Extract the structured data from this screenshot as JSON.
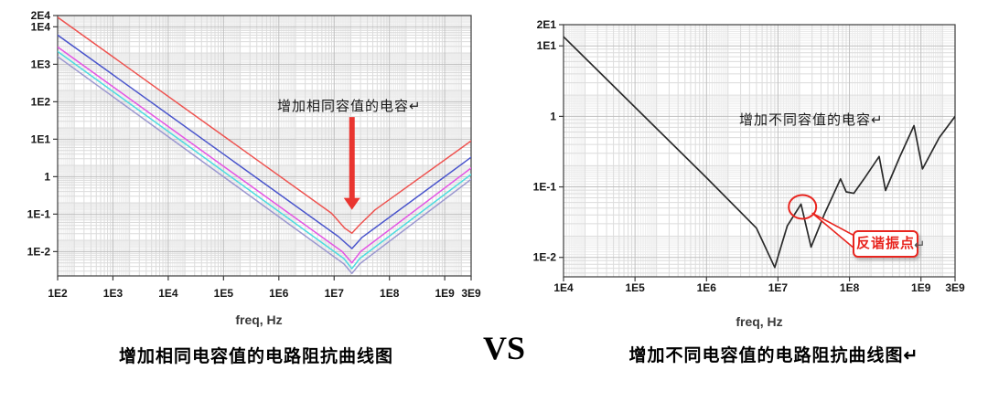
{
  "page": {
    "vs_label": "VS",
    "background": "#ffffff"
  },
  "chart_data": [
    {
      "type": "line",
      "scale": "log-log",
      "caption": "增加相同电容值的电路阻抗曲线图",
      "xlabel": "freq, Hz",
      "grid": true,
      "x_range": [
        100.0,
        3000000000.0
      ],
      "y_range": [
        0.00224,
        20000.0
      ],
      "x_ticks": [
        {
          "v": 100.0,
          "label": "1E2"
        },
        {
          "v": 1000.0,
          "label": "1E3"
        },
        {
          "v": 10000.0,
          "label": "1E4"
        },
        {
          "v": 100000.0,
          "label": "1E5"
        },
        {
          "v": 1000000.0,
          "label": "1E6"
        },
        {
          "v": 10000000.0,
          "label": "1E7"
        },
        {
          "v": 100000000.0,
          "label": "1E8"
        },
        {
          "v": 1000000000.0,
          "label": "1E9"
        },
        {
          "v": 3000000000.0,
          "label": "3E9"
        }
      ],
      "y_ticks": [
        {
          "v": 20000.0,
          "label": "2E4"
        },
        {
          "v": 10000.0,
          "label": "1E4"
        },
        {
          "v": 1000.0,
          "label": "1E3"
        },
        {
          "v": 100.0,
          "label": "1E2"
        },
        {
          "v": 10.0,
          "label": "1E1"
        },
        {
          "v": 1,
          "label": "1"
        },
        {
          "v": 0.1,
          "label": "1E-1"
        },
        {
          "v": 0.01,
          "label": "1E-2"
        }
      ],
      "series": [
        {
          "name": "curve-red",
          "color": "#ee5350",
          "points": [
            [
              100.0,
              18000.0
            ],
            [
              9000000.0,
              0.105
            ],
            [
              15500000.0,
              0.042
            ],
            [
              21000000.0,
              0.031
            ],
            [
              29000000.0,
              0.052
            ],
            [
              55000000.0,
              0.13
            ],
            [
              3000000000.0,
              9
            ]
          ]
        },
        {
          "name": "curve-blue",
          "color": "#4a55cc",
          "points": [
            [
              100.0,
              6000.0
            ],
            [
              12000000.0,
              0.025
            ],
            [
              21000000.0,
              0.012
            ],
            [
              32000000.0,
              0.024
            ],
            [
              3000000000.0,
              3.3
            ]
          ]
        },
        {
          "name": "curve-magenta",
          "color": "#e455e4",
          "points": [
            [
              100.0,
              2900.0
            ],
            [
              14000000.0,
              0.01
            ],
            [
              21000000.0,
              0.005
            ],
            [
              30000000.0,
              0.01
            ],
            [
              3000000000.0,
              1.7
            ]
          ]
        },
        {
          "name": "curve-cyan",
          "color": "#4cdce0",
          "points": [
            [
              100.0,
              2200.0
            ],
            [
              15000000.0,
              0.0065
            ],
            [
              21000000.0,
              0.0035
            ],
            [
              29000000.0,
              0.0065
            ],
            [
              3000000000.0,
              1.15
            ]
          ]
        },
        {
          "name": "curve-purple",
          "color": "#9b97d0",
          "points": [
            [
              100.0,
              1600.0
            ],
            [
              15000000.0,
              0.0047
            ],
            [
              21000000.0,
              0.0026
            ],
            [
              29000000.0,
              0.0047
            ],
            [
              3000000000.0,
              0.85
            ]
          ]
        }
      ],
      "annotation": {
        "text": "增加相同容值的电容↵",
        "color": "#e8251f",
        "arrow": {
          "x": 21000000.0,
          "from_y": 39,
          "to_y": 0.13
        }
      }
    },
    {
      "type": "line",
      "scale": "log-log",
      "caption": "增加不同电容值的电路阻抗曲线图↵",
      "xlabel": "freq, Hz",
      "grid": true,
      "x_range": [
        10000.0,
        3000000000.0
      ],
      "y_range": [
        0.0053,
        20
      ],
      "x_ticks": [
        {
          "v": 10000.0,
          "label": "1E4"
        },
        {
          "v": 100000.0,
          "label": "1E5"
        },
        {
          "v": 1000000.0,
          "label": "1E6"
        },
        {
          "v": 10000000.0,
          "label": "1E7"
        },
        {
          "v": 100000000.0,
          "label": "1E8"
        },
        {
          "v": 1000000000.0,
          "label": "1E9"
        },
        {
          "v": 3000000000.0,
          "label": "3E9"
        }
      ],
      "y_ticks": [
        {
          "v": 20,
          "label": "2E1"
        },
        {
          "v": 10,
          "label": "1E1"
        },
        {
          "v": 1,
          "label": "1"
        },
        {
          "v": 0.1,
          "label": "1E-1"
        },
        {
          "v": 0.01,
          "label": "1E-2"
        }
      ],
      "series": [
        {
          "name": "curve-black",
          "color": "#2a2a2a",
          "points": [
            [
              10000.0,
              13.5
            ],
            [
              1000000.0,
              0.135
            ],
            [
              5000000.0,
              0.026
            ],
            [
              9000000.0,
              0.0072
            ],
            [
              13500000.0,
              0.028
            ],
            [
              21000000.0,
              0.057
            ],
            [
              29000000.0,
              0.014
            ],
            [
              45000000.0,
              0.042
            ],
            [
              75000000.0,
              0.13
            ],
            [
              90000000.0,
              0.085
            ],
            [
              115000000.0,
              0.081
            ],
            [
              160000000.0,
              0.13
            ],
            [
              260000000.0,
              0.27
            ],
            [
              320000000.0,
              0.089
            ],
            [
              500000000.0,
              0.26
            ],
            [
              800000000.0,
              0.74
            ],
            [
              1050000000.0,
              0.18
            ],
            [
              1800000000.0,
              0.5
            ],
            [
              3000000000.0,
              1.0
            ]
          ]
        }
      ],
      "annotation": {
        "text": "增加不同容值的电容↵",
        "color": "#e8251f",
        "circle": {
          "x": 22000000.0,
          "y": 0.052
        },
        "callout_text": "反谐振点",
        "callout_suffix": "↵"
      }
    }
  ]
}
